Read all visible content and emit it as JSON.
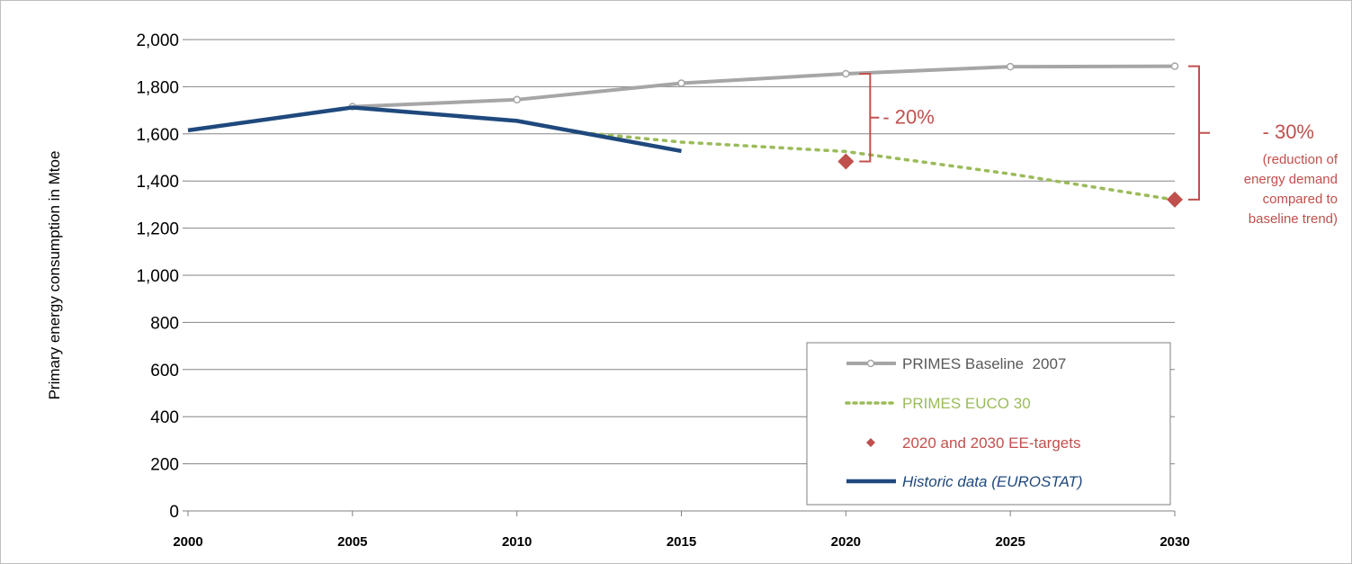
{
  "chart_data": {
    "type": "line",
    "ylabel": "Primary energy consumption in Mtoe",
    "xlabel": "",
    "xlim": [
      2000,
      2030
    ],
    "ylim": [
      0,
      2000
    ],
    "x_ticks": [
      2000,
      2005,
      2010,
      2015,
      2020,
      2025,
      2030
    ],
    "y_ticks": [
      0,
      200,
      400,
      600,
      800,
      1000,
      1200,
      1400,
      1600,
      1800,
      2000
    ],
    "y_tick_labels": [
      "0",
      "200",
      "400",
      "600",
      "800",
      "1,000",
      "1,200",
      "1,400",
      "1,600",
      "1,800",
      "2,000"
    ],
    "grid": "horizontal",
    "legend_position": "bottom-right",
    "series": [
      {
        "name": "PRIMES Baseline  2007",
        "color": "#a6a6a6",
        "style": "solid-markers",
        "x": [
          2005,
          2010,
          2015,
          2020,
          2025,
          2030
        ],
        "y": [
          1715,
          1745,
          1815,
          1855,
          1885,
          1887
        ]
      },
      {
        "name": "PRIMES EUCO 30",
        "color": "#9bbb59",
        "style": "dotted",
        "x": [
          2012,
          2015,
          2020,
          2025,
          2030
        ],
        "y": [
          1605,
          1565,
          1525,
          1430,
          1320
        ]
      },
      {
        "name": "2020 and 2030 EE-targets",
        "color": "#c0504d",
        "style": "diamond",
        "x": [
          2020,
          2030
        ],
        "y": [
          1483,
          1321
        ]
      },
      {
        "name": "Historic data (EUROSTAT)",
        "color": "#1f497d",
        "style": "solid-thick",
        "x": [
          2000,
          2005,
          2010,
          2015
        ],
        "y": [
          1615,
          1712,
          1655,
          1527
        ]
      }
    ],
    "annotations": [
      {
        "text": "- 20%",
        "x": 2020,
        "y_top": 1855,
        "y_bottom": 1483
      },
      {
        "text": "- 30%",
        "x": 2030,
        "y_top": 1887,
        "y_bottom": 1321,
        "note": [
          "(reduction of",
          "energy demand",
          "compared to",
          "baseline trend)"
        ]
      }
    ]
  }
}
